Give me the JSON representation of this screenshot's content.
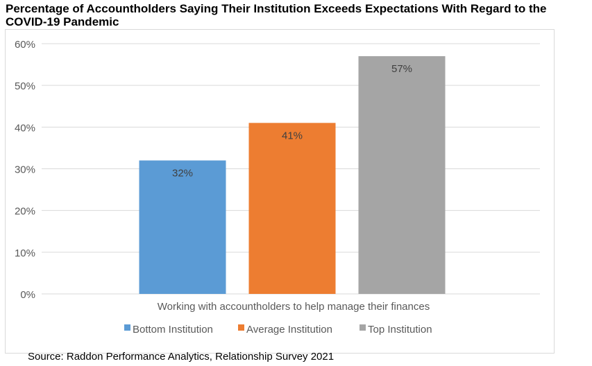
{
  "title": "Percentage of Accountholders Saying Their Institution Exceeds Expectations With Regard to the COVID-19 Pandemic",
  "source": "Source: Raddon Performance Analytics, Relationship Survey 2021",
  "chart_data": {
    "type": "bar",
    "categories": [
      "Working with accountholders to help manage their finances"
    ],
    "series": [
      {
        "name": "Bottom Institution",
        "values": [
          32
        ],
        "label": "32%",
        "color": "#5b9bd5"
      },
      {
        "name": "Average Institution",
        "values": [
          41
        ],
        "label": "41%",
        "color": "#ed7d31"
      },
      {
        "name": "Top Institution",
        "values": [
          57
        ],
        "label": "57%",
        "color": "#a5a5a5"
      }
    ],
    "ylim": [
      0,
      60
    ],
    "yticks": [
      "0%",
      "10%",
      "20%",
      "30%",
      "40%",
      "50%",
      "60%"
    ],
    "grid": true,
    "legend": "bottom"
  }
}
